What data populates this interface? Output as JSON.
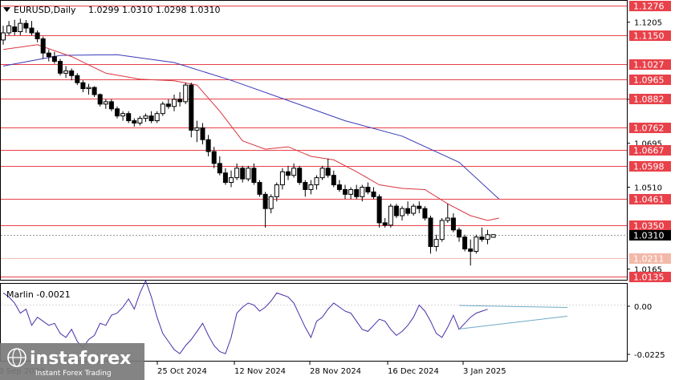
{
  "header": {
    "symbol": "EURUSD,Daily",
    "ohlc": "1.0299 1.0310 1.0298 1.0310",
    "menu_icon": "triangle-down-icon"
  },
  "oscillator": {
    "label": "Marlin -0.0021",
    "value": -0.0021,
    "ticks": [
      "0.00",
      "-0.0225"
    ]
  },
  "logo": {
    "brand": "instaforex",
    "tagline": "Instant Forex Trading"
  },
  "colors": {
    "level_line": "#e8414a",
    "level_label_bg": "#e8414a",
    "current_price_bg": "#000000",
    "faint_level_bg": "#f2b8a8",
    "ma_slow": "#3a3ab8",
    "ma_fast": "#d9363e",
    "oscillator": "#4b2ea8",
    "trendline": "#6fa9c8"
  },
  "chart_data": {
    "type": "candlestick",
    "y_range": [
      1.012,
      1.1295
    ],
    "y_ticks": [
      "1.1205",
      "1.0880",
      "1.0695",
      "1.0510",
      "1.0165"
    ],
    "x_labels": [
      "25 Oct 2024",
      "12 Nov 2024",
      "28 Nov 2024",
      "16 Dec 2024",
      "3 Jan 2025"
    ],
    "x_label_cut": "23 Sep 2024",
    "levels": [
      {
        "label": "1.1276",
        "value": 1.1276,
        "style": "red"
      },
      {
        "label": "1.1150",
        "value": 1.115,
        "style": "red"
      },
      {
        "label": "1.1027",
        "value": 1.1027,
        "style": "red"
      },
      {
        "label": "1.0965",
        "value": 1.0965,
        "style": "red"
      },
      {
        "label": "1.0882",
        "value": 1.0882,
        "style": "red"
      },
      {
        "label": "1.0762",
        "value": 1.0762,
        "style": "red"
      },
      {
        "label": "1.0667",
        "value": 1.0667,
        "style": "red"
      },
      {
        "label": "1.0598",
        "value": 1.0598,
        "style": "red"
      },
      {
        "label": "1.0461",
        "value": 1.0461,
        "style": "red"
      },
      {
        "label": "1.0350",
        "value": 1.035,
        "style": "red"
      },
      {
        "label": "1.0310",
        "value": 1.031,
        "style": "current"
      },
      {
        "label": "1.0211",
        "value": 1.0211,
        "style": "faint"
      },
      {
        "label": "1.0135",
        "value": 1.0135,
        "style": "red"
      }
    ],
    "candles": [
      [
        1.113,
        1.119,
        1.111,
        1.116
      ],
      [
        1.116,
        1.121,
        1.115,
        1.119
      ],
      [
        1.1185,
        1.1215,
        1.115,
        1.1165
      ],
      [
        1.1165,
        1.122,
        1.115,
        1.12
      ],
      [
        1.12,
        1.1214,
        1.116,
        1.118
      ],
      [
        1.118,
        1.121,
        1.115,
        1.116
      ],
      [
        1.116,
        1.117,
        1.112,
        1.1135
      ],
      [
        1.1135,
        1.1145,
        1.105,
        1.1075
      ],
      [
        1.1075,
        1.109,
        1.104,
        1.106
      ],
      [
        1.106,
        1.108,
        1.103,
        1.104
      ],
      [
        1.104,
        1.105,
        1.098,
        1.099
      ],
      [
        1.099,
        1.102,
        1.097,
        1.1
      ],
      [
        1.1,
        1.101,
        1.096,
        1.098
      ],
      [
        1.098,
        1.099,
        1.094,
        1.095
      ],
      [
        1.095,
        1.096,
        1.091,
        1.0925
      ],
      [
        1.0925,
        1.0945,
        1.09,
        1.093
      ],
      [
        1.093,
        1.0935,
        1.089,
        1.09
      ],
      [
        1.09,
        1.0905,
        1.085,
        1.086
      ],
      [
        1.086,
        1.088,
        1.084,
        1.087
      ],
      [
        1.087,
        1.088,
        1.083,
        1.084
      ],
      [
        1.084,
        1.085,
        1.08,
        1.081
      ],
      [
        1.081,
        1.083,
        1.079,
        1.082
      ],
      [
        1.082,
        1.083,
        1.078,
        1.079
      ],
      [
        1.079,
        1.08,
        1.0765,
        1.078
      ],
      [
        1.078,
        1.081,
        1.077,
        1.08
      ],
      [
        1.08,
        1.082,
        1.0785,
        1.081
      ],
      [
        1.081,
        1.083,
        1.078,
        1.079
      ],
      [
        1.079,
        1.083,
        1.078,
        1.082
      ],
      [
        1.082,
        1.087,
        1.081,
        1.086
      ],
      [
        1.086,
        1.088,
        1.084,
        1.085
      ],
      [
        1.085,
        1.09,
        1.083,
        1.088
      ],
      [
        1.088,
        1.091,
        1.085,
        1.087
      ],
      [
        1.087,
        1.095,
        1.086,
        1.094
      ],
      [
        1.094,
        1.095,
        1.072,
        1.075
      ],
      [
        1.075,
        1.079,
        1.07,
        1.076
      ],
      [
        1.076,
        1.078,
        1.069,
        1.071
      ],
      [
        1.071,
        1.073,
        1.064,
        1.066
      ],
      [
        1.066,
        1.068,
        1.059,
        1.061
      ],
      [
        1.061,
        1.064,
        1.056,
        1.057
      ],
      [
        1.057,
        1.059,
        1.052,
        1.053
      ],
      [
        1.053,
        1.058,
        1.051,
        1.055
      ],
      [
        1.055,
        1.061,
        1.054,
        1.059
      ],
      [
        1.059,
        1.06,
        1.053,
        1.0545
      ],
      [
        1.0545,
        1.06,
        1.0535,
        1.059
      ],
      [
        1.059,
        1.061,
        1.052,
        1.053
      ],
      [
        1.053,
        1.054,
        1.047,
        1.048
      ],
      [
        1.048,
        1.049,
        1.034,
        1.042
      ],
      [
        1.042,
        1.048,
        1.04,
        1.047
      ],
      [
        1.047,
        1.053,
        1.045,
        1.052
      ],
      [
        1.052,
        1.059,
        1.05,
        1.0575
      ],
      [
        1.0575,
        1.06,
        1.054,
        1.056
      ],
      [
        1.056,
        1.061,
        1.055,
        1.059
      ],
      [
        1.059,
        1.06,
        1.052,
        1.053
      ],
      [
        1.053,
        1.054,
        1.047,
        1.05
      ],
      [
        1.05,
        1.054,
        1.048,
        1.052
      ],
      [
        1.052,
        1.056,
        1.05,
        1.055
      ],
      [
        1.055,
        1.06,
        1.054,
        1.059
      ],
      [
        1.059,
        1.063,
        1.055,
        1.056
      ],
      [
        1.056,
        1.058,
        1.051,
        1.052
      ],
      [
        1.052,
        1.054,
        1.049,
        1.05
      ],
      [
        1.05,
        1.052,
        1.046,
        1.048
      ],
      [
        1.048,
        1.051,
        1.046,
        1.05
      ],
      [
        1.05,
        1.052,
        1.046,
        1.047
      ],
      [
        1.047,
        1.052,
        1.045,
        1.051
      ],
      [
        1.051,
        1.053,
        1.048,
        1.049
      ],
      [
        1.049,
        1.051,
        1.046,
        1.047
      ],
      [
        1.047,
        1.048,
        1.034,
        1.036
      ],
      [
        1.036,
        1.038,
        1.034,
        1.035
      ],
      [
        1.035,
        1.044,
        1.034,
        1.043
      ],
      [
        1.043,
        1.044,
        1.038,
        1.039
      ],
      [
        1.039,
        1.043,
        1.037,
        1.042
      ],
      [
        1.042,
        1.045,
        1.039,
        1.04
      ],
      [
        1.04,
        1.044,
        1.039,
        1.043
      ],
      [
        1.043,
        1.045,
        1.04,
        1.042
      ],
      [
        1.042,
        1.043,
        1.037,
        1.038
      ],
      [
        1.038,
        1.039,
        1.023,
        1.026
      ],
      [
        1.026,
        1.031,
        1.024,
        1.029
      ],
      [
        1.029,
        1.038,
        1.028,
        1.037
      ],
      [
        1.037,
        1.044,
        1.036,
        1.038
      ],
      [
        1.038,
        1.04,
        1.032,
        1.033
      ],
      [
        1.033,
        1.034,
        1.028,
        1.03
      ],
      [
        1.03,
        1.031,
        1.024,
        1.025
      ],
      [
        1.025,
        1.029,
        1.018,
        1.024
      ],
      [
        1.024,
        1.031,
        1.023,
        1.03
      ],
      [
        1.03,
        1.034,
        1.028,
        1.029
      ],
      [
        1.029,
        1.033,
        1.027,
        1.031
      ],
      [
        1.0299,
        1.031,
        1.0298,
        1.031
      ]
    ],
    "ma_slow": [
      [
        0,
        1.102
      ],
      [
        10,
        1.1065
      ],
      [
        20,
        1.1068
      ],
      [
        30,
        1.1035
      ],
      [
        40,
        1.096
      ],
      [
        50,
        1.0875
      ],
      [
        60,
        1.079
      ],
      [
        70,
        1.0725
      ],
      [
        80,
        1.0615
      ],
      [
        87,
        1.046
      ]
    ],
    "ma_fast": [
      [
        0,
        1.109
      ],
      [
        6,
        1.111
      ],
      [
        12,
        1.106
      ],
      [
        18,
        1.099
      ],
      [
        24,
        1.0965
      ],
      [
        30,
        1.0958
      ],
      [
        34,
        1.094
      ],
      [
        38,
        1.083
      ],
      [
        42,
        1.0705
      ],
      [
        46,
        1.067
      ],
      [
        50,
        1.068
      ],
      [
        54,
        1.064
      ],
      [
        58,
        1.0625
      ],
      [
        62,
        1.0575
      ],
      [
        66,
        1.052
      ],
      [
        70,
        1.0505
      ],
      [
        74,
        1.05
      ],
      [
        78,
        1.044
      ],
      [
        82,
        1.039
      ],
      [
        85,
        1.037
      ],
      [
        87,
        1.038
      ]
    ],
    "oscillator_series": [
      0.006,
      0.004,
      0.001,
      -0.004,
      -0.002,
      -0.01,
      -0.006,
      -0.008,
      -0.01,
      -0.009,
      -0.014,
      -0.016,
      -0.012,
      -0.018,
      -0.021,
      -0.017,
      -0.015,
      -0.009,
      -0.01,
      -0.005,
      -0.004,
      -0.001,
      0.003,
      -0.002,
      0.006,
      0.012,
      0.004,
      -0.006,
      -0.014,
      -0.018,
      -0.022,
      -0.024,
      -0.02,
      -0.017,
      -0.013,
      -0.009,
      -0.015,
      -0.02,
      -0.023,
      -0.024,
      -0.016,
      -0.004,
      -0.001,
      0.001,
      0.0,
      -0.003,
      -0.001,
      0.002,
      0.006,
      0.005,
      0.004,
      0.001,
      -0.005,
      -0.011,
      -0.016,
      -0.008,
      -0.006,
      -0.002,
      0.001,
      -0.001,
      -0.003,
      -0.004,
      -0.008,
      -0.012,
      -0.013,
      -0.01,
      -0.007,
      -0.008,
      -0.012,
      -0.015,
      -0.013,
      -0.01,
      -0.006,
      0.0,
      -0.003,
      -0.008,
      -0.014,
      -0.016,
      -0.011,
      -0.005,
      -0.012,
      -0.009,
      -0.006,
      -0.004,
      -0.003,
      -0.0021
    ],
    "osc_range": [
      -0.0275,
      0.0105
    ]
  }
}
